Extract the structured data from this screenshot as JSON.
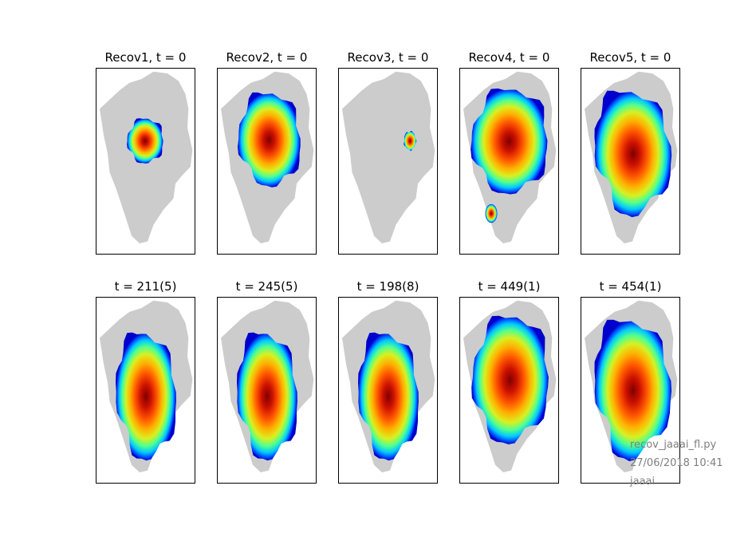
{
  "figure": {
    "footer": {
      "script": "recov_jaaai_fl.py",
      "timestamp": "27/06/2018 10:41",
      "user": "jaaai"
    }
  },
  "chart_data": {
    "type": "heatmap",
    "land_color": "#cccccc",
    "colormap": "jet",
    "panels": [
      {
        "title": "Recov1, t = 0",
        "ice": {
          "cx": 0.5,
          "cy": 0.39,
          "rx": 0.18,
          "ry": 0.12,
          "skew": 0.0,
          "lean": 0.0
        }
      },
      {
        "title": "Recov2, t = 0",
        "ice": {
          "cx": 0.53,
          "cy": 0.38,
          "rx": 0.31,
          "ry": 0.25,
          "skew": 0.02,
          "lean": 0.0
        }
      },
      {
        "title": "Recov3, t = 0",
        "ice": {
          "cx": 0.72,
          "cy": 0.39,
          "rx": 0.06,
          "ry": 0.05,
          "skew": 0.0,
          "lean": 0.0
        }
      },
      {
        "title": "Recov4, t = 0",
        "ice": {
          "cx": 0.51,
          "cy": 0.39,
          "rx": 0.38,
          "ry": 0.28,
          "skew": 0.0,
          "lean": 0.0
        },
        "extra": {
          "cx": 0.32,
          "cy": 0.78,
          "rx": 0.06,
          "ry": 0.05
        }
      },
      {
        "title": "Recov5, t = 0",
        "ice": {
          "cx": 0.53,
          "cy": 0.42,
          "rx": 0.38,
          "ry": 0.3,
          "skew": 0.08,
          "lean": 0.35
        }
      },
      {
        "title": "t = 211(5)",
        "ice": {
          "cx": 0.51,
          "cy": 0.51,
          "rx": 0.3,
          "ry": 0.32,
          "skew": 0.05,
          "lean": 0.2
        }
      },
      {
        "title": "t = 245(5)",
        "ice": {
          "cx": 0.51,
          "cy": 0.51,
          "rx": 0.3,
          "ry": 0.32,
          "skew": 0.05,
          "lean": 0.2
        }
      },
      {
        "title": "t = 198(8)",
        "ice": {
          "cx": 0.51,
          "cy": 0.51,
          "rx": 0.3,
          "ry": 0.32,
          "skew": 0.05,
          "lean": 0.2
        }
      },
      {
        "title": "t = 449(1)",
        "ice": {
          "cx": 0.52,
          "cy": 0.43,
          "rx": 0.38,
          "ry": 0.33,
          "skew": 0.0,
          "lean": 0.1
        }
      },
      {
        "title": "t = 454(1)",
        "ice": {
          "cx": 0.53,
          "cy": 0.45,
          "rx": 0.38,
          "ry": 0.33,
          "skew": 0.08,
          "lean": 0.45
        }
      }
    ]
  }
}
